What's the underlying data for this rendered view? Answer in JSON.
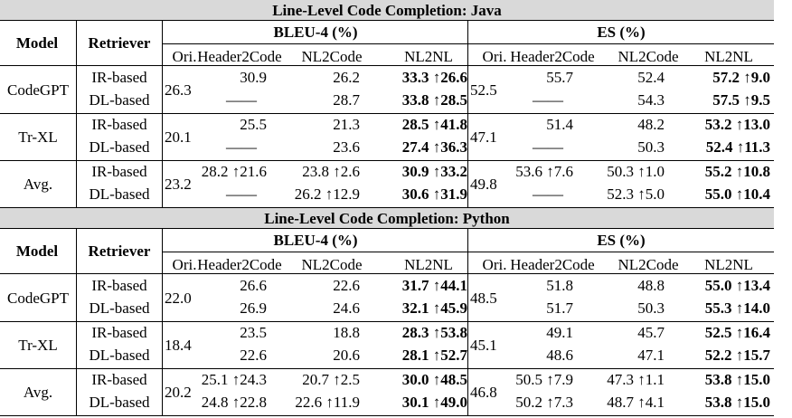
{
  "tables": [
    {
      "title": "Line-Level Code Completion: Java",
      "header": {
        "model": "Model",
        "retriever": "Retriever",
        "metric1": "BLEU-4 (%)",
        "metric2": "ES (%)",
        "columns": [
          "Ori.",
          "Header2Code",
          "NL2Code",
          "NL2NL",
          "Ori.",
          "Header2Code",
          "NL2Code",
          "NL2NL"
        ]
      },
      "groups": [
        {
          "model": "CodeGPT",
          "bleu_ori": "26.3",
          "es_ori": "52.5",
          "rows": [
            {
              "retriever": "IR-based",
              "h2c": "30.9",
              "nl2c": "26.2",
              "nl2nl": "33.3 ↑26.6",
              "es_h2c": "55.7",
              "es_nl2c": "52.4",
              "es_nl2nl": "57.2 ↑9.0"
            },
            {
              "retriever": "DL-based",
              "h2c": "——",
              "nl2c": "28.7",
              "nl2nl": "33.8 ↑28.5",
              "es_h2c": "——",
              "es_nl2c": "54.3",
              "es_nl2nl": "57.5 ↑9.5"
            }
          ]
        },
        {
          "model": "Tr-XL",
          "bleu_ori": "20.1",
          "es_ori": "47.1",
          "rows": [
            {
              "retriever": "IR-based",
              "h2c": "25.5",
              "nl2c": "21.3",
              "nl2nl": "28.5 ↑41.8",
              "es_h2c": "51.4",
              "es_nl2c": "48.2",
              "es_nl2nl": "53.2 ↑13.0"
            },
            {
              "retriever": "DL-based",
              "h2c": "——",
              "nl2c": "23.6",
              "nl2nl": "27.4 ↑36.3",
              "es_h2c": "——",
              "es_nl2c": "50.3",
              "es_nl2nl": "52.4 ↑11.3"
            }
          ]
        },
        {
          "model": "Avg.",
          "bleu_ori": "23.2",
          "es_ori": "49.8",
          "rows": [
            {
              "retriever": "IR-based",
              "h2c": "28.2 ↑21.6",
              "nl2c": "23.8 ↑2.6",
              "nl2nl": "30.9 ↑33.2",
              "es_h2c": "53.6 ↑7.6",
              "es_nl2c": "50.3 ↑1.0",
              "es_nl2nl": "55.2 ↑10.8"
            },
            {
              "retriever": "DL-based",
              "h2c": "——",
              "nl2c": "26.2 ↑12.9",
              "nl2nl": "30.6 ↑31.9",
              "es_h2c": "——",
              "es_nl2c": "52.3 ↑5.0",
              "es_nl2nl": "55.0 ↑10.4"
            }
          ]
        }
      ]
    },
    {
      "title": "Line-Level Code Completion: Python",
      "header": {
        "model": "Model",
        "retriever": "Retriever",
        "metric1": "BLEU-4 (%)",
        "metric2": "ES (%)",
        "columns": [
          "Ori.",
          "Header2Code",
          "NL2Code",
          "NL2NL",
          "Ori.",
          "Header2Code",
          "NL2Code",
          "NL2NL"
        ]
      },
      "groups": [
        {
          "model": "CodeGPT",
          "bleu_ori": "22.0",
          "es_ori": "48.5",
          "rows": [
            {
              "retriever": "IR-based",
              "h2c": "26.6",
              "nl2c": "22.6",
              "nl2nl": "31.7 ↑44.1",
              "es_h2c": "51.8",
              "es_nl2c": "48.8",
              "es_nl2nl": "55.0 ↑13.4"
            },
            {
              "retriever": "DL-based",
              "h2c": "26.9",
              "nl2c": "24.6",
              "nl2nl": "32.1 ↑45.9",
              "es_h2c": "51.7",
              "es_nl2c": "50.3",
              "es_nl2nl": "55.3 ↑14.0"
            }
          ]
        },
        {
          "model": "Tr-XL",
          "bleu_ori": "18.4",
          "es_ori": "45.1",
          "rows": [
            {
              "retriever": "IR-based",
              "h2c": "23.5",
              "nl2c": "18.8",
              "nl2nl": "28.3 ↑53.8",
              "es_h2c": "49.1",
              "es_nl2c": "45.7",
              "es_nl2nl": "52.5 ↑16.4"
            },
            {
              "retriever": "DL-based",
              "h2c": "22.6",
              "nl2c": "20.6",
              "nl2nl": "28.1 ↑52.7",
              "es_h2c": "48.6",
              "es_nl2c": "47.1",
              "es_nl2nl": "52.2 ↑15.7"
            }
          ]
        },
        {
          "model": "Avg.",
          "bleu_ori": "20.2",
          "es_ori": "46.8",
          "rows": [
            {
              "retriever": "IR-based",
              "h2c": "25.1 ↑24.3",
              "nl2c": "20.7 ↑2.5",
              "nl2nl": "30.0 ↑48.5",
              "es_h2c": "50.5 ↑7.9",
              "es_nl2c": "47.3 ↑1.1",
              "es_nl2nl": "53.8 ↑15.0"
            },
            {
              "retriever": "DL-based",
              "h2c": "24.8 ↑22.8",
              "nl2c": "22.6 ↑11.9",
              "nl2nl": "30.1 ↑49.0",
              "es_h2c": "50.2 ↑7.3",
              "es_nl2c": "48.7 ↑4.1",
              "es_nl2nl": "53.8 ↑15.0"
            }
          ]
        }
      ]
    }
  ]
}
